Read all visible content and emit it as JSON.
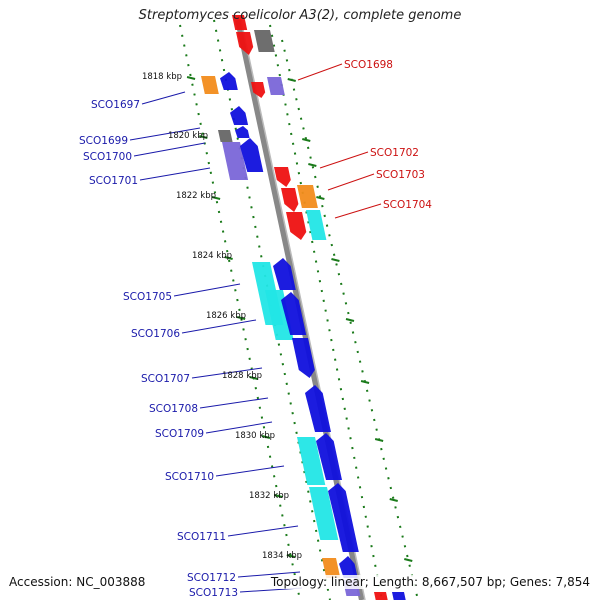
{
  "title": "Streptomyces coelicolor A3(2), complete genome",
  "footer": {
    "accession": "Accession: NC_003888",
    "summary": "Topology: linear; Length: 8,667,507 bp; Genes: 7,854"
  },
  "colors": {
    "blue_gene": "#1010dd",
    "red_gene": "#ee1111",
    "purple_gene": "#7a66d8",
    "cyan_gene": "#22e6e6",
    "orange_gene": "#f28c1c",
    "gray_gene": "#666666",
    "axis": "#888888",
    "tick": "#1a7a1a",
    "left_label": "#1a1aaa",
    "right_label": "#cc1111"
  },
  "kbp_ticks": [
    "1818 kbp",
    "1820 kbp",
    "1822 kbp",
    "1824 kbp",
    "1826 kbp",
    "1828 kbp",
    "1830 kbp",
    "1832 kbp",
    "1834 kbp"
  ],
  "left_labels": [
    "SCO1697",
    "SCO1699",
    "SCO1700",
    "SCO1701",
    "SCO1705",
    "SCO1706",
    "SCO1707",
    "SCO1708",
    "SCO1709",
    "SCO1710",
    "SCO1711",
    "SCO1712",
    "SCO1713"
  ],
  "right_labels": [
    "SCO1698",
    "SCO1702",
    "SCO1703",
    "SCO1704"
  ]
}
